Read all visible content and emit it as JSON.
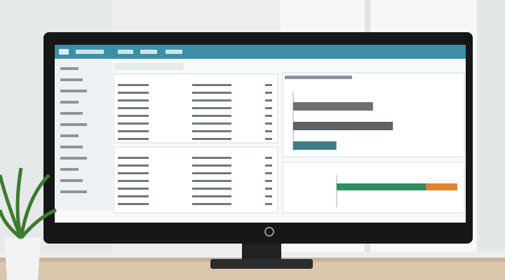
{
  "screen": {
    "top_chart": {
      "type": "bar",
      "xlim": [
        0,
        100
      ],
      "series": [
        {
          "color": "#6e6e6e",
          "values": [
            48
          ]
        },
        {
          "color": "#5c6164",
          "values": [
            60
          ]
        },
        {
          "color": "#3f7b85",
          "values": [
            26
          ]
        }
      ]
    },
    "bottom_chart": {
      "type": "bar",
      "xlim": [
        0,
        100
      ],
      "series": [
        {
          "color": "#e0822e",
          "values": [
            100
          ]
        },
        {
          "color": "#2f8f5e",
          "values": [
            74
          ]
        }
      ]
    }
  }
}
